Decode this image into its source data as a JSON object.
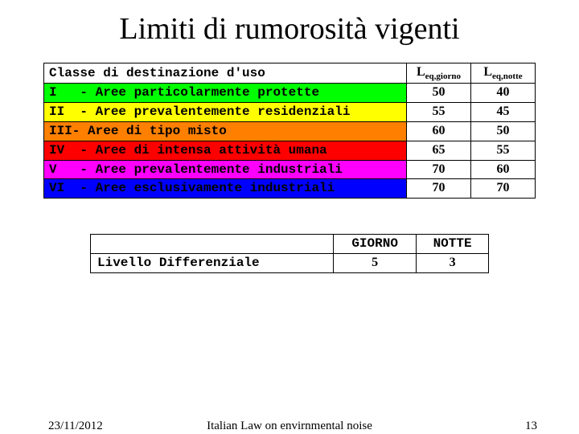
{
  "title": "Limiti di rumorosità vigenti",
  "table1": {
    "header_left": "Classe di destinazione d'uso",
    "header_col1_main": "L",
    "header_col1_sub": "eq,giorno",
    "header_col2_main": "L",
    "header_col2_sub": "eq,notte",
    "rows": [
      {
        "label": "I   - Aree particolarmente protette",
        "bg": "#00ff00",
        "v1": "50",
        "v2": "40"
      },
      {
        "label": "II  - Aree prevalentemente residenziali",
        "bg": "#ffff00",
        "v1": "55",
        "v2": "45"
      },
      {
        "label": "III- Aree di tipo misto",
        "bg": "#ff8000",
        "v1": "60",
        "v2": "50"
      },
      {
        "label": "IV  - Aree di intensa attività umana",
        "bg": "#ff0000",
        "v1": "65",
        "v2": "55"
      },
      {
        "label": "V   - Aree prevalentemente industriali",
        "bg": "#ff00ff",
        "v1": "70",
        "v2": "60"
      },
      {
        "label": "VI  - Aree esclusivamente industriali",
        "bg": "#0000ff",
        "v1": "70",
        "v2": "70"
      }
    ]
  },
  "table2": {
    "col1_header": "GIORNO",
    "col2_header": "NOTTE",
    "row_label": "Livello Differenziale",
    "v1": "5",
    "v2": "3"
  },
  "footer": {
    "date": "23/11/2012",
    "caption": "Italian Law on envirnmental noise",
    "page": "13"
  }
}
